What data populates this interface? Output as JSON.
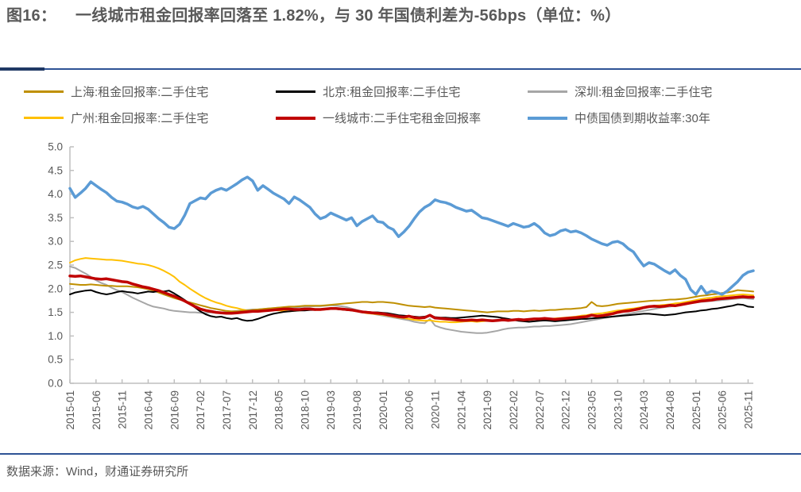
{
  "title": {
    "figure_label": "图16：",
    "text": "一线城市租金回报率回落至 1.82%，与 30 年国债利差为-56bps（单位：%）"
  },
  "source": "数据来源：Wind，财通证券研究所",
  "colors": {
    "title_text": "#595959",
    "divider": "#2E5395",
    "divider_accent": "#1F3864",
    "axis": "#BFBFBF",
    "tick_text": "#595959",
    "shanghai": "#BF8F00",
    "beijing": "#000000",
    "shenzhen": "#A6A6A6",
    "guangzhou": "#FFC000",
    "tier1": "#C00000",
    "bond30y": "#5B9BD5"
  },
  "legend": {
    "items": [
      {
        "label": "上海:租金回报率:二手住宅",
        "color": "#BF8F00",
        "thick": false
      },
      {
        "label": "北京:租金回报率:二手住宅",
        "color": "#000000",
        "thick": false
      },
      {
        "label": "深圳:租金回报率:二手住宅",
        "color": "#A6A6A6",
        "thick": false
      },
      {
        "label": "广州:租金回报率:二手住宅",
        "color": "#FFC000",
        "thick": false
      },
      {
        "label": "一线城市:二手住宅租金回报率",
        "color": "#C00000",
        "thick": true
      },
      {
        "label": "中债国债到期收益率:30年",
        "color": "#5B9BD5",
        "thick": true
      }
    ]
  },
  "chart_data": {
    "type": "line",
    "grid": false,
    "legend_position": "top",
    "ylim": [
      0.0,
      5.0
    ],
    "y_ticks": [
      "5.0",
      "4.5",
      "4.0",
      "3.5",
      "3.0",
      "2.5",
      "2.0",
      "1.5",
      "1.0",
      "0.5",
      "0.0"
    ],
    "x_tick_labels": [
      "2015-01",
      "2015-06",
      "2015-11",
      "2016-04",
      "2016-09",
      "2017-02",
      "2017-07",
      "2017-12",
      "2018-05",
      "2018-10",
      "2019-03",
      "2019-08",
      "2020-01",
      "2020-06",
      "2020-11",
      "2021-04",
      "2021-09",
      "2022-02",
      "2022-07",
      "2022-12",
      "2023-05",
      "2023-10",
      "2024-03",
      "2024-08",
      "2025-01",
      "2025-06",
      "2025-11"
    ],
    "x": [
      "2015-01",
      "2015-02",
      "2015-03",
      "2015-04",
      "2015-05",
      "2015-06",
      "2015-07",
      "2015-08",
      "2015-09",
      "2015-10",
      "2015-11",
      "2015-12",
      "2016-01",
      "2016-02",
      "2016-03",
      "2016-04",
      "2016-05",
      "2016-06",
      "2016-07",
      "2016-08",
      "2016-09",
      "2016-10",
      "2016-11",
      "2016-12",
      "2017-01",
      "2017-02",
      "2017-03",
      "2017-04",
      "2017-05",
      "2017-06",
      "2017-07",
      "2017-08",
      "2017-09",
      "2017-10",
      "2017-11",
      "2017-12",
      "2018-01",
      "2018-02",
      "2018-03",
      "2018-04",
      "2018-05",
      "2018-06",
      "2018-07",
      "2018-08",
      "2018-09",
      "2018-10",
      "2018-11",
      "2018-12",
      "2019-01",
      "2019-02",
      "2019-03",
      "2019-04",
      "2019-05",
      "2019-06",
      "2019-07",
      "2019-08",
      "2019-09",
      "2019-10",
      "2019-11",
      "2019-12",
      "2020-01",
      "2020-02",
      "2020-03",
      "2020-04",
      "2020-05",
      "2020-06",
      "2020-07",
      "2020-08",
      "2020-09",
      "2020-10",
      "2020-11",
      "2020-12",
      "2021-01",
      "2021-02",
      "2021-03",
      "2021-04",
      "2021-05",
      "2021-06",
      "2021-07",
      "2021-08",
      "2021-09",
      "2021-10",
      "2021-11",
      "2021-12",
      "2022-01",
      "2022-02",
      "2022-03",
      "2022-04",
      "2022-05",
      "2022-06",
      "2022-07",
      "2022-08",
      "2022-09",
      "2022-10",
      "2022-11",
      "2022-12",
      "2023-01",
      "2023-02",
      "2023-03",
      "2023-04",
      "2023-05",
      "2023-06",
      "2023-07",
      "2023-08",
      "2023-09",
      "2023-10",
      "2023-11",
      "2023-12",
      "2024-01",
      "2024-02",
      "2024-03",
      "2024-04",
      "2024-05",
      "2024-06",
      "2024-07",
      "2024-08",
      "2024-09",
      "2024-10",
      "2024-11",
      "2024-12",
      "2025-01",
      "2025-02",
      "2025-03",
      "2025-04",
      "2025-05",
      "2025-06",
      "2025-07",
      "2025-08",
      "2025-09",
      "2025-10",
      "2025-11",
      "2025-12"
    ],
    "series": [
      {
        "id": "shenzhen",
        "name": "深圳:租金回报率:二手住宅",
        "color": "#A6A6A6",
        "width": 2,
        "values": [
          2.47,
          2.44,
          2.38,
          2.32,
          2.25,
          2.18,
          2.12,
          2.08,
          2.02,
          1.97,
          1.93,
          1.87,
          1.81,
          1.76,
          1.71,
          1.66,
          1.62,
          1.6,
          1.58,
          1.55,
          1.53,
          1.52,
          1.51,
          1.5,
          1.5,
          1.49,
          1.49,
          1.5,
          1.49,
          1.5,
          1.51,
          1.52,
          1.53,
          1.54,
          1.55,
          1.56,
          1.56,
          1.57,
          1.58,
          1.59,
          1.6,
          1.6,
          1.61,
          1.6,
          1.61,
          1.62,
          1.62,
          1.63,
          1.63,
          1.64,
          1.65,
          1.64,
          1.63,
          1.61,
          1.58,
          1.55,
          1.52,
          1.49,
          1.47,
          1.45,
          1.43,
          1.41,
          1.39,
          1.37,
          1.35,
          1.33,
          1.3,
          1.28,
          1.27,
          1.36,
          1.22,
          1.18,
          1.15,
          1.13,
          1.11,
          1.09,
          1.08,
          1.07,
          1.06,
          1.06,
          1.07,
          1.09,
          1.11,
          1.14,
          1.16,
          1.17,
          1.18,
          1.18,
          1.19,
          1.2,
          1.2,
          1.21,
          1.21,
          1.22,
          1.23,
          1.24,
          1.25,
          1.27,
          1.29,
          1.31,
          1.33,
          1.35,
          1.37,
          1.39,
          1.41,
          1.43,
          1.45,
          1.47,
          1.49,
          1.51,
          1.53,
          1.55,
          1.57,
          1.59,
          1.61,
          1.62,
          1.64,
          1.66,
          1.68,
          1.7,
          1.71,
          1.72,
          1.73,
          1.74,
          1.75,
          1.76,
          1.77,
          1.78,
          1.79,
          1.8,
          1.79,
          1.78
        ]
      },
      {
        "id": "guangzhou",
        "name": "广州:租金回报率:二手住宅",
        "color": "#FFC000",
        "width": 2,
        "values": [
          2.55,
          2.6,
          2.63,
          2.65,
          2.64,
          2.63,
          2.62,
          2.61,
          2.61,
          2.6,
          2.59,
          2.57,
          2.55,
          2.53,
          2.52,
          2.5,
          2.47,
          2.43,
          2.38,
          2.32,
          2.25,
          2.15,
          2.08,
          2.0,
          1.93,
          1.86,
          1.8,
          1.75,
          1.71,
          1.68,
          1.64,
          1.61,
          1.59,
          1.56,
          1.54,
          1.52,
          1.52,
          1.53,
          1.54,
          1.55,
          1.54,
          1.53,
          1.52,
          1.53,
          1.54,
          1.55,
          1.56,
          1.55,
          1.55,
          1.56,
          1.57,
          1.57,
          1.56,
          1.55,
          1.54,
          1.52,
          1.5,
          1.48,
          1.47,
          1.46,
          1.45,
          1.43,
          1.41,
          1.39,
          1.38,
          1.36,
          1.34,
          1.33,
          1.32,
          1.33,
          1.31,
          1.3,
          1.3,
          1.29,
          1.29,
          1.3,
          1.31,
          1.31,
          1.3,
          1.31,
          1.32,
          1.32,
          1.33,
          1.33,
          1.33,
          1.34,
          1.34,
          1.33,
          1.34,
          1.35,
          1.35,
          1.36,
          1.36,
          1.37,
          1.38,
          1.39,
          1.4,
          1.41,
          1.43,
          1.44,
          1.46,
          1.47,
          1.48,
          1.5,
          1.52,
          1.54,
          1.55,
          1.57,
          1.58,
          1.6,
          1.61,
          1.63,
          1.64,
          1.65,
          1.66,
          1.67,
          1.69,
          1.7,
          1.72,
          1.74,
          1.76,
          1.78,
          1.8,
          1.81,
          1.83,
          1.84,
          1.85,
          1.86,
          1.87,
          1.88,
          1.87,
          1.86
        ]
      },
      {
        "id": "shanghai",
        "name": "上海:租金回报率:二手住宅",
        "color": "#BF8F00",
        "width": 2,
        "values": [
          2.1,
          2.09,
          2.08,
          2.08,
          2.09,
          2.08,
          2.07,
          2.06,
          2.06,
          2.05,
          2.05,
          2.05,
          2.04,
          2.03,
          2.01,
          1.99,
          1.96,
          1.92,
          1.88,
          1.84,
          1.8,
          1.77,
          1.74,
          1.71,
          1.68,
          1.65,
          1.62,
          1.59,
          1.57,
          1.55,
          1.53,
          1.52,
          1.52,
          1.53,
          1.54,
          1.55,
          1.56,
          1.57,
          1.58,
          1.59,
          1.6,
          1.61,
          1.62,
          1.62,
          1.63,
          1.64,
          1.64,
          1.64,
          1.64,
          1.65,
          1.66,
          1.67,
          1.68,
          1.69,
          1.7,
          1.71,
          1.72,
          1.72,
          1.71,
          1.72,
          1.72,
          1.71,
          1.7,
          1.68,
          1.66,
          1.64,
          1.63,
          1.62,
          1.61,
          1.62,
          1.6,
          1.59,
          1.58,
          1.57,
          1.56,
          1.55,
          1.54,
          1.53,
          1.52,
          1.51,
          1.5,
          1.51,
          1.52,
          1.52,
          1.52,
          1.53,
          1.53,
          1.52,
          1.53,
          1.54,
          1.53,
          1.54,
          1.55,
          1.55,
          1.56,
          1.57,
          1.57,
          1.58,
          1.59,
          1.61,
          1.72,
          1.64,
          1.63,
          1.64,
          1.66,
          1.68,
          1.69,
          1.7,
          1.71,
          1.72,
          1.73,
          1.74,
          1.75,
          1.75,
          1.76,
          1.77,
          1.77,
          1.78,
          1.79,
          1.81,
          1.83,
          1.85,
          1.86,
          1.88,
          1.89,
          1.91,
          1.92,
          1.94,
          1.97,
          1.96,
          1.95,
          1.94
        ]
      },
      {
        "id": "beijing",
        "name": "北京:租金回报率:二手住宅",
        "color": "#000000",
        "width": 2,
        "values": [
          1.88,
          1.92,
          1.94,
          1.96,
          1.97,
          1.93,
          1.9,
          1.88,
          1.9,
          1.93,
          1.95,
          1.93,
          1.92,
          1.9,
          1.92,
          1.94,
          1.93,
          1.95,
          1.94,
          1.96,
          1.9,
          1.83,
          1.76,
          1.68,
          1.6,
          1.52,
          1.46,
          1.42,
          1.4,
          1.41,
          1.38,
          1.36,
          1.38,
          1.34,
          1.32,
          1.33,
          1.36,
          1.4,
          1.44,
          1.47,
          1.49,
          1.51,
          1.52,
          1.53,
          1.54,
          1.54,
          1.55,
          1.55,
          1.56,
          1.57,
          1.58,
          1.57,
          1.56,
          1.55,
          1.54,
          1.53,
          1.52,
          1.51,
          1.5,
          1.5,
          1.49,
          1.48,
          1.46,
          1.44,
          1.43,
          1.42,
          1.41,
          1.4,
          1.41,
          1.43,
          1.4,
          1.39,
          1.39,
          1.38,
          1.38,
          1.39,
          1.4,
          1.41,
          1.42,
          1.43,
          1.42,
          1.41,
          1.4,
          1.38,
          1.36,
          1.34,
          1.32,
          1.31,
          1.3,
          1.31,
          1.32,
          1.33,
          1.32,
          1.31,
          1.32,
          1.33,
          1.34,
          1.35,
          1.36,
          1.36,
          1.37,
          1.38,
          1.39,
          1.4,
          1.41,
          1.42,
          1.43,
          1.44,
          1.45,
          1.46,
          1.47,
          1.47,
          1.46,
          1.45,
          1.44,
          1.45,
          1.46,
          1.48,
          1.5,
          1.51,
          1.52,
          1.54,
          1.55,
          1.57,
          1.58,
          1.6,
          1.62,
          1.64,
          1.67,
          1.66,
          1.62,
          1.61
        ]
      },
      {
        "id": "tier1",
        "name": "一线城市:二手住宅租金回报率",
        "color": "#C00000",
        "width": 3.5,
        "values": [
          2.27,
          2.26,
          2.27,
          2.25,
          2.23,
          2.21,
          2.2,
          2.21,
          2.19,
          2.17,
          2.15,
          2.14,
          2.1,
          2.07,
          2.04,
          2.02,
          1.99,
          1.96,
          1.92,
          1.88,
          1.84,
          1.79,
          1.74,
          1.68,
          1.62,
          1.57,
          1.54,
          1.52,
          1.5,
          1.49,
          1.48,
          1.48,
          1.49,
          1.5,
          1.51,
          1.52,
          1.52,
          1.53,
          1.54,
          1.55,
          1.56,
          1.57,
          1.57,
          1.56,
          1.56,
          1.57,
          1.57,
          1.56,
          1.56,
          1.57,
          1.58,
          1.58,
          1.57,
          1.56,
          1.55,
          1.53,
          1.51,
          1.5,
          1.49,
          1.48,
          1.47,
          1.45,
          1.43,
          1.41,
          1.4,
          1.42,
          1.39,
          1.38,
          1.39,
          1.44,
          1.38,
          1.37,
          1.36,
          1.35,
          1.34,
          1.33,
          1.33,
          1.34,
          1.33,
          1.34,
          1.33,
          1.32,
          1.33,
          1.34,
          1.33,
          1.34,
          1.35,
          1.34,
          1.35,
          1.36,
          1.36,
          1.37,
          1.36,
          1.35,
          1.36,
          1.37,
          1.38,
          1.39,
          1.4,
          1.41,
          1.44,
          1.42,
          1.43,
          1.45,
          1.47,
          1.5,
          1.52,
          1.53,
          1.55,
          1.57,
          1.6,
          1.62,
          1.63,
          1.62,
          1.63,
          1.65,
          1.64,
          1.66,
          1.68,
          1.7,
          1.72,
          1.74,
          1.75,
          1.76,
          1.78,
          1.79,
          1.8,
          1.81,
          1.82,
          1.83,
          1.82,
          1.82
        ]
      },
      {
        "id": "bond30y",
        "name": "中债国债到期收益率:30年",
        "color": "#5B9BD5",
        "width": 3.5,
        "values": [
          4.12,
          3.93,
          4.02,
          4.12,
          4.26,
          4.18,
          4.1,
          4.03,
          3.93,
          3.85,
          3.83,
          3.79,
          3.73,
          3.7,
          3.74,
          3.68,
          3.58,
          3.48,
          3.4,
          3.3,
          3.27,
          3.36,
          3.55,
          3.8,
          3.86,
          3.92,
          3.9,
          4.02,
          4.08,
          4.12,
          4.08,
          4.15,
          4.22,
          4.3,
          4.36,
          4.28,
          4.08,
          4.18,
          4.1,
          4.02,
          3.96,
          3.9,
          3.8,
          3.94,
          3.88,
          3.8,
          3.72,
          3.58,
          3.48,
          3.52,
          3.6,
          3.55,
          3.5,
          3.45,
          3.5,
          3.33,
          3.42,
          3.48,
          3.54,
          3.42,
          3.4,
          3.3,
          3.25,
          3.1,
          3.2,
          3.32,
          3.48,
          3.62,
          3.72,
          3.78,
          3.88,
          3.84,
          3.82,
          3.78,
          3.72,
          3.68,
          3.64,
          3.66,
          3.58,
          3.5,
          3.48,
          3.44,
          3.4,
          3.36,
          3.32,
          3.38,
          3.34,
          3.3,
          3.32,
          3.38,
          3.3,
          3.18,
          3.12,
          3.15,
          3.22,
          3.25,
          3.2,
          3.22,
          3.18,
          3.12,
          3.05,
          3.0,
          2.95,
          2.92,
          2.98,
          3.0,
          2.95,
          2.85,
          2.78,
          2.62,
          2.48,
          2.55,
          2.52,
          2.45,
          2.38,
          2.32,
          2.4,
          2.28,
          2.2,
          1.98,
          1.88,
          2.05,
          1.9,
          1.95,
          1.92,
          1.88,
          1.95,
          2.05,
          2.15,
          2.28,
          2.35,
          2.38
        ]
      }
    ]
  }
}
